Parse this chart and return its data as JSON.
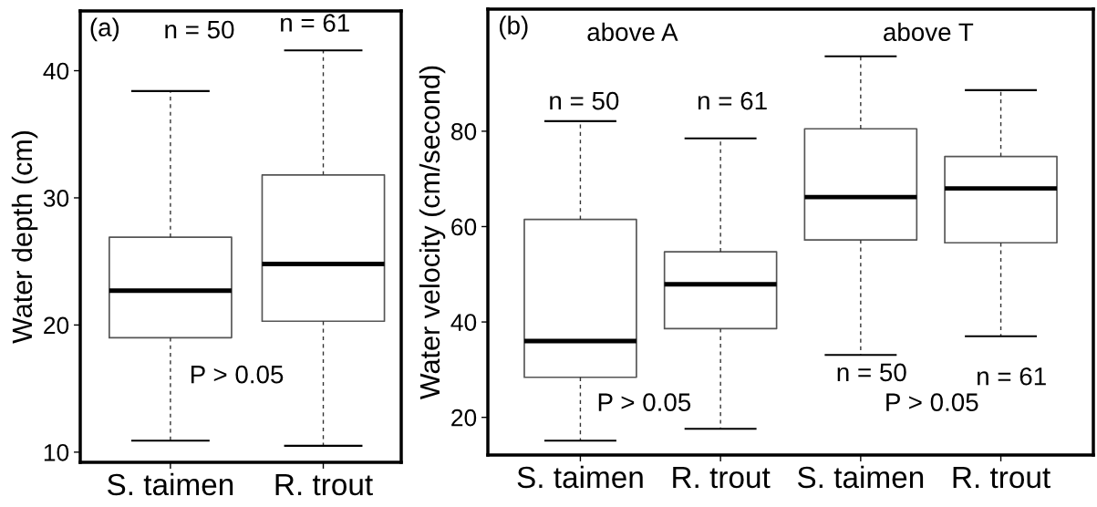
{
  "chart_data": [
    {
      "type": "box",
      "ylabel": "Water depth (cm)",
      "categories": [
        "S. taimen",
        "R. trout"
      ],
      "boxes": [
        {
          "low": 10.9,
          "q1": 19.0,
          "median": 22.7,
          "q3": 26.9,
          "high": 38.4
        },
        {
          "low": 10.5,
          "q1": 20.3,
          "median": 24.8,
          "q3": 31.8,
          "high": 41.6
        }
      ],
      "ylim": [
        9.2,
        44.7
      ],
      "yticks": [
        10,
        20,
        30,
        40
      ],
      "grid": false,
      "annotations": [
        "(a)",
        "n = 50",
        "n = 61",
        "P > 0.05"
      ]
    },
    {
      "type": "box",
      "ylabel": "Water velocity (cm/second)",
      "categories": [
        "S. taimen",
        "R. trout",
        "S. taimen",
        "R. trout"
      ],
      "boxes": [
        {
          "low": 15.1,
          "q1": 28.4,
          "median": 36.0,
          "q3": 61.5,
          "high": 82.1
        },
        {
          "low": 17.6,
          "q1": 38.6,
          "median": 47.9,
          "q3": 54.7,
          "high": 78.5
        },
        {
          "low": 33.1,
          "q1": 57.2,
          "median": 66.2,
          "q3": 80.5,
          "high": 95.7
        },
        {
          "low": 37.0,
          "q1": 56.6,
          "median": 68.0,
          "q3": 74.7,
          "high": 88.6
        }
      ],
      "ylim": [
        12.1,
        105.6
      ],
      "yticks": [
        20,
        40,
        60,
        80
      ],
      "grid": false,
      "annotations": [
        "(b)",
        "above A",
        "above T",
        "n = 50",
        "n = 61",
        "n = 50",
        "n = 61",
        "P > 0.05",
        "P > 0.05"
      ]
    }
  ]
}
